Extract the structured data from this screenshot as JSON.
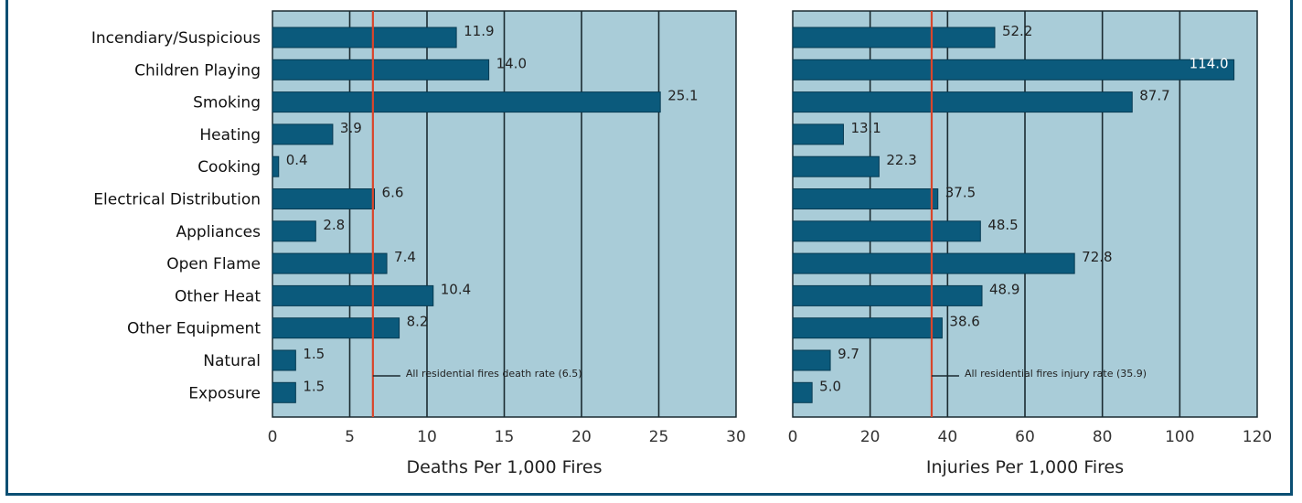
{
  "colors": {
    "plot_bg": "#a9ccd8",
    "bar": "#0b5a7c",
    "bar_edge": "#063a52",
    "grid": "#1a2a30",
    "ref_line": "#d9452b"
  },
  "chart_data": [
    {
      "type": "bar",
      "orientation": "horizontal",
      "categories": [
        "Incendiary/Suspicious",
        "Children Playing",
        "Smoking",
        "Heating",
        "Cooking",
        "Electrical Distribution",
        "Appliances",
        "Open Flame",
        "Other Heat",
        "Other Equipment",
        "Natural",
        "Exposure"
      ],
      "values": [
        11.9,
        14.0,
        25.1,
        3.9,
        0.4,
        6.6,
        2.8,
        7.4,
        10.4,
        8.2,
        1.5,
        1.5
      ],
      "value_labels": [
        "11.9",
        "14.0",
        "25.1",
        "3.9",
        "0.4",
        "6.6",
        "2.8",
        "7.4",
        "10.4",
        "8.2",
        "1.5",
        "1.5"
      ],
      "xlabel": "Deaths Per 1,000 Fires",
      "xlim": [
        0,
        30
      ],
      "xticks": [
        0,
        5,
        10,
        15,
        20,
        25,
        30
      ],
      "xtick_labels": [
        "0",
        "5",
        "10",
        "15",
        "20",
        "25",
        "30"
      ],
      "grid": true,
      "reference_line": {
        "value": 6.5,
        "label": "All residential fires death rate (6.5)"
      }
    },
    {
      "type": "bar",
      "orientation": "horizontal",
      "categories": [
        "Incendiary/Suspicious",
        "Children Playing",
        "Smoking",
        "Heating",
        "Cooking",
        "Electrical Distribution",
        "Appliances",
        "Open Flame",
        "Other Heat",
        "Other Equipment",
        "Natural",
        "Exposure"
      ],
      "values": [
        52.2,
        114.0,
        87.7,
        13.1,
        22.3,
        37.5,
        48.5,
        72.8,
        48.9,
        38.6,
        9.7,
        5.0
      ],
      "value_labels": [
        "52.2",
        "114.0",
        "87.7",
        "13.1",
        "22.3",
        "37.5",
        "48.5",
        "72.8",
        "48.9",
        "38.6",
        "9.7",
        "5.0"
      ],
      "xlabel": "Injuries Per 1,000 Fires",
      "xlim": [
        0,
        120
      ],
      "xticks": [
        0,
        20,
        40,
        60,
        80,
        100,
        120
      ],
      "xtick_labels": [
        "0",
        "20",
        "40",
        "60",
        "80",
        "100",
        "120"
      ],
      "grid": true,
      "reference_line": {
        "value": 35.9,
        "label": "All residential fires injury rate (35.9)"
      }
    }
  ]
}
